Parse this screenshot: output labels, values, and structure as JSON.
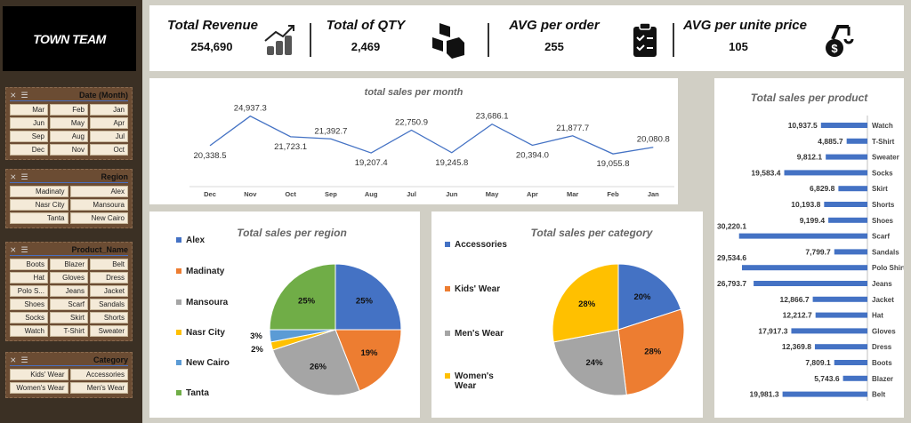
{
  "brand": "TOWN TEAM",
  "slicers": [
    {
      "title": "Date (Month)",
      "cols": 3,
      "items": [
        "Mar",
        "Feb",
        "Jan",
        "Jun",
        "May",
        "Apr",
        "Sep",
        "Aug",
        "Jul",
        "Dec",
        "Nov",
        "Oct"
      ]
    },
    {
      "title": "Region",
      "cols": 2,
      "items": [
        "Madinaty",
        "Alex",
        "Nasr City",
        "Mansoura",
        "Tanta",
        "New Cairo"
      ]
    },
    {
      "title": "Product_Name",
      "cols": 3,
      "items": [
        "Boots",
        "Blazer",
        "Belt",
        "Hat",
        "Gloves",
        "Dress",
        "Polo S...",
        "Jeans",
        "Jacket",
        "Shoes",
        "Scarf",
        "Sandals",
        "Socks",
        "Skirt",
        "Shorts",
        "Watch",
        "T-Shirt",
        "Sweater"
      ]
    },
    {
      "title": "Category",
      "cols": 2,
      "items": [
        "Kids' Wear",
        "Accessories",
        "Women's Wear",
        "Men's Wear"
      ]
    }
  ],
  "kpis": [
    {
      "label": "Total Revenue",
      "value": "254,690",
      "icon": "growth-coins-icon"
    },
    {
      "label": "Total of QTY",
      "value": "2,469",
      "icon": "boxes-icon"
    },
    {
      "label": "AVG per order",
      "value": "255",
      "icon": "clipboard-checklist-icon"
    },
    {
      "label": "AVG per unite price",
      "value": "105",
      "icon": "money-bag-robot-arm-icon"
    }
  ],
  "chart_data": [
    {
      "type": "line",
      "title": "total sales per month",
      "categories": [
        "Dec",
        "Nov",
        "Oct",
        "Sep",
        "Aug",
        "Jul",
        "Jun",
        "May",
        "Apr",
        "Mar",
        "Feb",
        "Jan"
      ],
      "values": [
        20338.5,
        24937.3,
        21723.1,
        21392.7,
        19207.4,
        22750.9,
        19245.8,
        23686.1,
        20394.0,
        21877.7,
        19055.8,
        20080.8
      ],
      "labels": [
        "20,338.5",
        "24,937.3",
        "21,723.1",
        "21,392.7",
        "19,207.4",
        "22,750.9",
        "19,245.8",
        "23,686.1",
        "20,394.0",
        "21,877.7",
        "19,055.8",
        "20,080.8"
      ],
      "color": "#4472c4"
    },
    {
      "type": "bar",
      "title": "Total sales per product",
      "categories": [
        "Watch",
        "T-Shirt",
        "Sweater",
        "Socks",
        "Skirt",
        "Shorts",
        "Shoes",
        "Scarf",
        "Sandals",
        "Polo Shirt",
        "Jeans",
        "Jacket",
        "Hat",
        "Gloves",
        "Dress",
        "Boots",
        "Blazer",
        "Belt"
      ],
      "values": [
        10937.5,
        4885.7,
        9812.1,
        19583.4,
        6829.8,
        10193.8,
        9199.4,
        30220.1,
        7799.7,
        29534.6,
        26793.7,
        12866.7,
        12212.7,
        17917.3,
        12369.8,
        7809.1,
        5743.6,
        19981.3
      ],
      "labels": [
        "10,937.5",
        "4,885.7",
        "9,812.1",
        "19,583.4",
        "6,829.8",
        "10,193.8",
        "9,199.4",
        "30,220.1",
        "7,799.7",
        "29,534.6",
        "26,793.7",
        "12,866.7",
        "12,212.7",
        "17,917.3",
        "12,369.8",
        "7,809.1",
        "5,743.6",
        "19,981.3"
      ],
      "color": "#4472c4"
    },
    {
      "type": "pie",
      "title": "Total sales per region",
      "categories": [
        "Alex",
        "Madinaty",
        "Mansoura",
        "Nasr City",
        "New Cairo",
        "Tanta"
      ],
      "values": [
        25,
        19,
        26,
        2,
        3,
        25
      ],
      "labels": [
        "25%",
        "19%",
        "26%",
        "2%",
        "3%",
        "25%"
      ],
      "colors": [
        "#4472c4",
        "#ed7d31",
        "#a5a5a5",
        "#ffc000",
        "#5b9bd5",
        "#70ad47"
      ]
    },
    {
      "type": "pie",
      "title": "Total sales per category",
      "categories": [
        "Accessories",
        "Kids' Wear",
        "Men's Wear",
        "Women's Wear"
      ],
      "values": [
        20,
        28,
        24,
        28
      ],
      "labels": [
        "20%",
        "28%",
        "24%",
        "28%"
      ],
      "colors": [
        "#4472c4",
        "#ed7d31",
        "#a5a5a5",
        "#ffc000"
      ]
    }
  ]
}
